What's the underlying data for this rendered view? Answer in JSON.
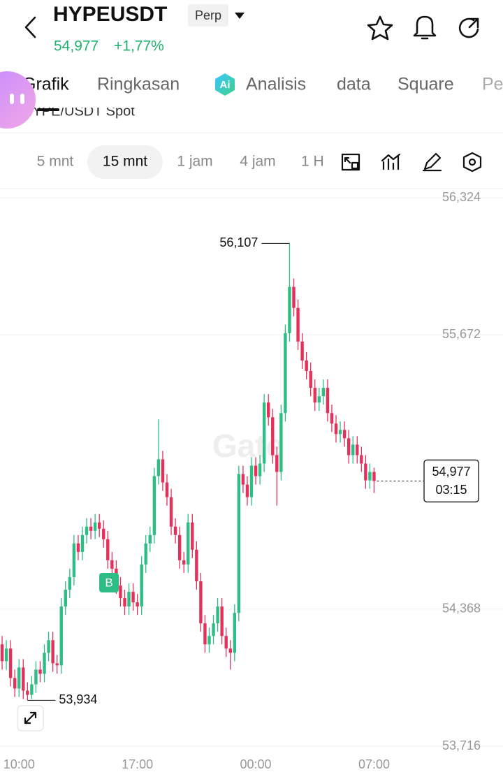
{
  "header": {
    "symbol": "HYPEUSDT",
    "badge": "Perp",
    "price": "54,977",
    "change": "+1,77%"
  },
  "tabs": [
    "Grafik",
    "Ringkasan",
    "Analisis",
    "data",
    "Square",
    "Pe"
  ],
  "sub_header": "HYPE/USDT Spot",
  "intervals": [
    "5 mnt",
    "15 mnt",
    "1 jam",
    "4 jam",
    "1 H"
  ],
  "chart_data": {
    "type": "candlestick",
    "watermark": "Gate",
    "categories": [
      null,
      null,
      null,
      null,
      "10:00",
      null,
      null,
      null,
      null,
      null,
      null,
      null,
      null,
      null,
      null,
      null,
      null,
      null,
      null,
      null,
      null,
      null,
      null,
      null,
      null,
      null,
      null,
      null,
      null,
      null,
      null,
      null,
      "17:00",
      null,
      null,
      null,
      null,
      null,
      null,
      null,
      null,
      null,
      null,
      null,
      null,
      null,
      null,
      null,
      null,
      null,
      null,
      null,
      null,
      null,
      null,
      null,
      null,
      null,
      null,
      null,
      "00:00",
      null,
      null,
      null,
      null,
      null,
      null,
      null,
      null,
      null,
      null,
      null,
      null,
      null,
      null,
      null,
      null,
      null,
      null,
      null,
      null,
      null,
      null,
      null,
      null,
      null,
      null,
      null,
      "07:00"
    ],
    "open": [
      54200,
      54120,
      54180,
      54040,
      53990,
      54090,
      53980,
      53960,
      54010,
      54080,
      54060,
      54160,
      54220,
      54110,
      54100,
      54380,
      54460,
      54520,
      54680,
      54640,
      54720,
      54760,
      54740,
      54780,
      54750,
      54700,
      54600,
      54560,
      54480,
      54420,
      54380,
      54450,
      54400,
      54380,
      54580,
      54680,
      54720,
      55000,
      55080,
      54970,
      54900,
      54760,
      54720,
      54600,
      54580,
      54780,
      54650,
      54500,
      54300,
      54200,
      54240,
      54300,
      54380,
      54240,
      54180,
      54160,
      54350,
      55010,
      54960,
      54900,
      55050,
      55000,
      55060,
      55350,
      55280,
      55100,
      55020,
      55300,
      55680,
      55900,
      55800,
      55640,
      55550,
      55500,
      55420,
      55350,
      55380,
      55420,
      55300,
      55250,
      55200,
      55220,
      55180,
      55100,
      55150,
      55100,
      55060,
      54980,
      55020
    ],
    "high": [
      54240,
      54220,
      54220,
      54080,
      54130,
      54130,
      54020,
      54050,
      54120,
      54120,
      54200,
      54260,
      54260,
      54150,
      54420,
      54500,
      54560,
      54720,
      54720,
      54760,
      54800,
      54800,
      54820,
      54820,
      54790,
      54740,
      54640,
      54600,
      54520,
      54460,
      54490,
      54490,
      54440,
      54620,
      54720,
      54760,
      55040,
      55270,
      55120,
      55010,
      54940,
      54800,
      54760,
      54640,
      54820,
      54820,
      54690,
      54540,
      54340,
      54280,
      54340,
      54420,
      54420,
      54280,
      54220,
      54390,
      55050,
      55050,
      55000,
      55090,
      55090,
      55100,
      55390,
      55390,
      55320,
      55140,
      55340,
      55720,
      56107,
      55940,
      55840,
      55680,
      55590,
      55540,
      55460,
      55420,
      55460,
      55460,
      55340,
      55290,
      55260,
      55260,
      55220,
      55190,
      55190,
      55140,
      55100,
      55060,
      55040
    ],
    "low": [
      54080,
      54080,
      54000,
      53950,
      53950,
      53940,
      53934,
      53940,
      53970,
      54020,
      54020,
      54120,
      54070,
      54060,
      54060,
      54340,
      54420,
      54480,
      54600,
      54600,
      54680,
      54700,
      54700,
      54710,
      54660,
      54560,
      54520,
      54440,
      54380,
      54340,
      54340,
      54360,
      54340,
      54340,
      54540,
      54640,
      54680,
      54960,
      54930,
      54860,
      54720,
      54680,
      54560,
      54540,
      54540,
      54610,
      54460,
      54260,
      54160,
      54160,
      54200,
      54260,
      54200,
      54140,
      54080,
      54120,
      54310,
      54920,
      54860,
      54860,
      54960,
      54960,
      55020,
      55240,
      55060,
      54860,
      54980,
      55260,
      55640,
      55760,
      55600,
      55510,
      55460,
      55380,
      55310,
      55310,
      55340,
      55260,
      55210,
      55160,
      55160,
      55140,
      55060,
      55060,
      55060,
      55020,
      54940,
      54940,
      54920
    ],
    "close": [
      54120,
      54180,
      54040,
      53990,
      54090,
      53980,
      53960,
      54010,
      54080,
      54060,
      54160,
      54220,
      54110,
      54100,
      54380,
      54460,
      54520,
      54680,
      54640,
      54720,
      54760,
      54740,
      54780,
      54750,
      54700,
      54600,
      54560,
      54480,
      54420,
      54380,
      54450,
      54400,
      54380,
      54580,
      54680,
      54720,
      55000,
      55080,
      54970,
      54900,
      54760,
      54720,
      54600,
      54580,
      54780,
      54650,
      54500,
      54300,
      54200,
      54240,
      54300,
      54380,
      54240,
      54180,
      54160,
      54350,
      55010,
      54960,
      54900,
      55050,
      55000,
      55060,
      55350,
      55280,
      55100,
      55020,
      55300,
      55680,
      55900,
      55800,
      55640,
      55550,
      55500,
      55420,
      55350,
      55380,
      55420,
      55300,
      55250,
      55200,
      55220,
      55180,
      55100,
      55150,
      55100,
      55060,
      54980,
      55020,
      54977
    ],
    "up_color": "#2ebd85",
    "down_color": "#e5315a",
    "ylim": [
      53716,
      56324
    ],
    "yticks": [
      {
        "value": 56324,
        "label": "56,324"
      },
      {
        "value": 55672,
        "label": "55,672"
      },
      {
        "value": 54368,
        "label": "54,368"
      },
      {
        "value": 53716,
        "label": "53,716"
      }
    ],
    "grid": true,
    "high_marker": {
      "value": 56107,
      "label": "56,107"
    },
    "low_marker": {
      "value": 53934,
      "label": "53,934"
    },
    "last_price": {
      "value": 54977,
      "label": "54,977",
      "countdown": "03:15"
    },
    "trade_marker": "B"
  }
}
